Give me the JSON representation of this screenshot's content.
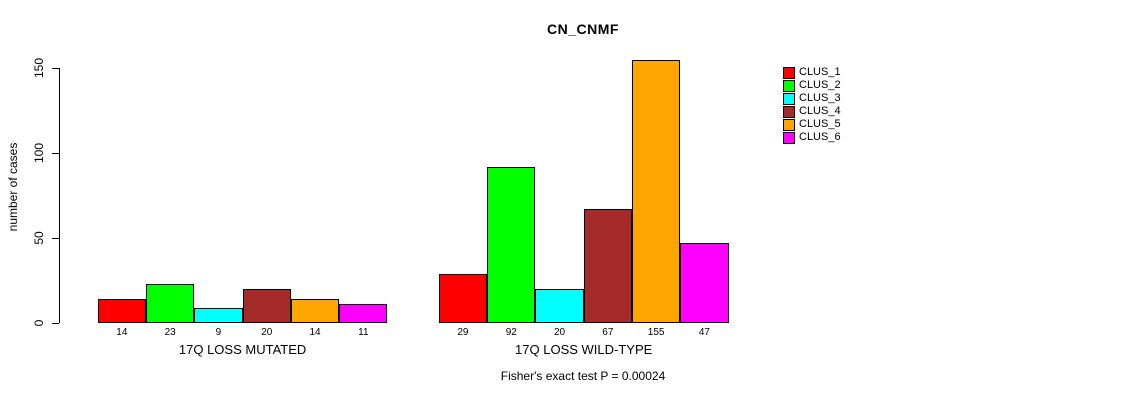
{
  "chart_data": {
    "type": "bar",
    "title": "CN_CNMF",
    "ylabel": "number of cases",
    "xlabel": "",
    "ylim": [
      0,
      150
    ],
    "yticks": [
      0,
      50,
      100,
      150
    ],
    "grid": false,
    "legend_position": "right-outside",
    "bar_border_color": "#000000",
    "series_colors": [
      "#FF0000",
      "#00FF00",
      "#00FFFF",
      "#A52A2A",
      "#FFA500",
      "#FF00FF"
    ],
    "legend": [
      {
        "label": "CLUS_1",
        "color": "#FF0000"
      },
      {
        "label": "CLUS_2",
        "color": "#00FF00"
      },
      {
        "label": "CLUS_3",
        "color": "#00FFFF"
      },
      {
        "label": "CLUS_4",
        "color": "#A52A2A"
      },
      {
        "label": "CLUS_5",
        "color": "#FFA500"
      },
      {
        "label": "CLUS_6",
        "color": "#FF00FF"
      }
    ],
    "groups": [
      {
        "label": "17Q LOSS MUTATED",
        "values": [
          14,
          23,
          9,
          20,
          14,
          11
        ]
      },
      {
        "label": "17Q LOSS WILD-TYPE",
        "values": [
          29,
          92,
          20,
          67,
          155,
          47
        ]
      }
    ],
    "footnote": "Fisher's exact test P = 0.00024"
  }
}
